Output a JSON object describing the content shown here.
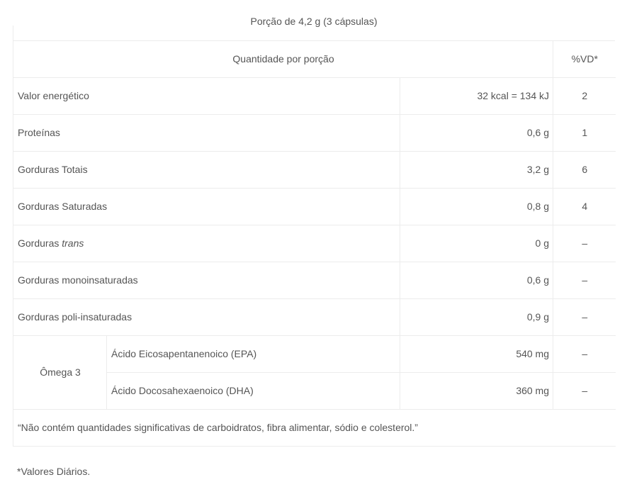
{
  "table": {
    "caption": "Porção de 4,2 g (3 cápsulas)",
    "header_quantity": "Quantidade por porção",
    "header_vd": "%VD*",
    "rows": [
      {
        "label": "Valor energético",
        "amount": "32 kcal = 134 kJ",
        "vd": "2"
      },
      {
        "label": "Proteínas",
        "amount": "0,6 g",
        "vd": "1"
      },
      {
        "label": "Gorduras Totais",
        "amount": "3,2 g",
        "vd": "6"
      },
      {
        "label": "Gorduras Saturadas",
        "amount": "0,8 g",
        "vd": "4"
      },
      {
        "label_prefix": "Gorduras ",
        "label_italic": "trans",
        "amount": "0 g",
        "vd": "–"
      },
      {
        "label": "Gorduras monoinsaturadas",
        "amount": "0,6 g",
        "vd": "–"
      },
      {
        "label": "Gorduras poli-insaturadas",
        "amount": "0,9 g",
        "vd": "–"
      }
    ],
    "omega_group": {
      "label": "Ômega 3",
      "rows": [
        {
          "label": "Ácido Eicosapentanenoico (EPA)",
          "amount": "540 mg",
          "vd": "–"
        },
        {
          "label": "Ácido Docosahexaenoico (DHA)",
          "amount": "360 mg",
          "vd": "–"
        }
      ]
    },
    "note": "“Não contém quantidades significativas de carboidratos, fibra alimentar, sódio e colesterol.”"
  },
  "footer": {
    "text": "*Valores Diários."
  }
}
